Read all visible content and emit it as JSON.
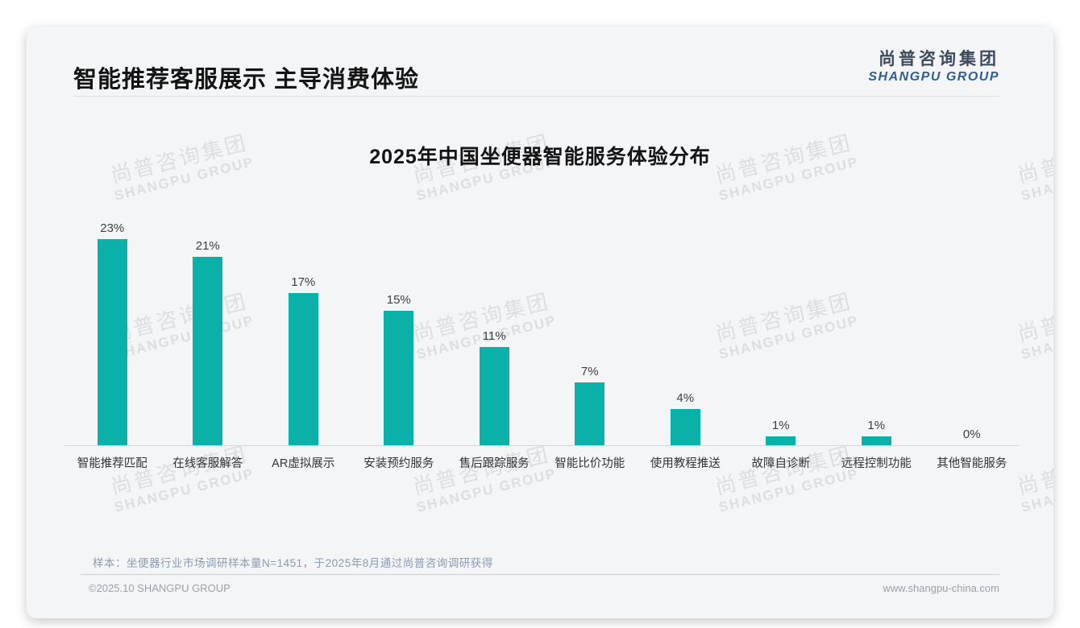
{
  "page": {
    "header": {
      "title": "智能推荐客服展示 主导消费体验"
    },
    "logo": {
      "cn": "尚普咨询集团",
      "en": "SHANGPU GROUP"
    },
    "watermark": {
      "cn": "尚普咨询集团",
      "en": "SHANGPU GROUP"
    },
    "footnote": "样本：坐便器行业市场调研样本量N=1451，于2025年8月通过尚普咨询调研获得",
    "footer": {
      "copyright": "©2025.10 SHANGPU GROUP",
      "website": "www.shangpu-china.com"
    }
  },
  "colors": {
    "bar": "#0ab1a9",
    "logo_cn": "#3d4a5c",
    "logo_en": "#2d5f94",
    "card_bg": "#f4f5f6"
  },
  "chart_data": {
    "type": "bar",
    "title": "2025年中国坐便器智能服务体验分布",
    "categories": [
      "智能推荐匹配",
      "在线客服解答",
      "AR虚拟展示",
      "安装预约服务",
      "售后跟踪服务",
      "智能比价功能",
      "使用教程推送",
      "故障自诊断",
      "远程控制功能",
      "其他智能服务"
    ],
    "values": [
      23,
      21,
      17,
      15,
      11,
      7,
      4,
      1,
      1,
      0
    ],
    "value_labels": [
      "23%",
      "21%",
      "17%",
      "15%",
      "11%",
      "7%",
      "4%",
      "1%",
      "1%",
      "0%"
    ],
    "unit": "%",
    "ylim": [
      0,
      25
    ],
    "grid": false,
    "legend": false,
    "bar_color": "#0ab1a9",
    "value_label_position": "above-bar",
    "xlabel": "",
    "ylabel": ""
  }
}
